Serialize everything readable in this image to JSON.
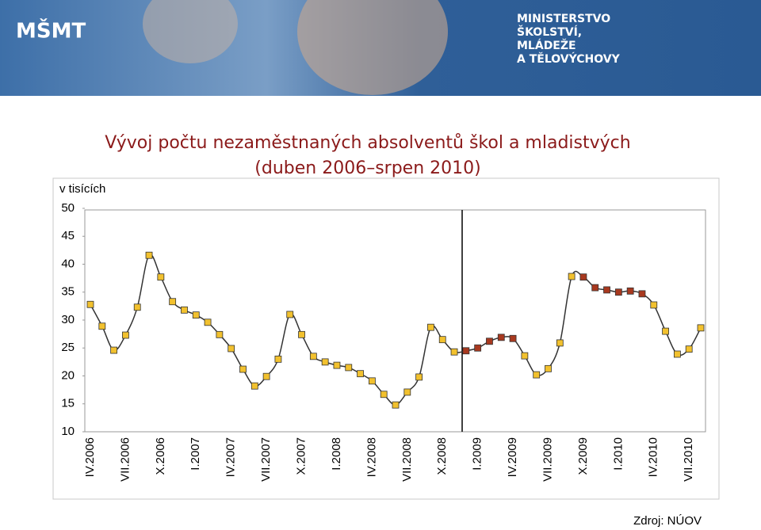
{
  "header": {
    "logo": "MŠMT",
    "ministry": [
      "MINISTERSTVO",
      "ŠKOLSTVÍ,",
      "MLÁDEŽE",
      "A TĚLOVÝCHOVY"
    ]
  },
  "chart_data": {
    "type": "line",
    "title": [
      "Vývoj počtu nezaměstnaných absolventů škol a mladistvých",
      "(duben 2006–srpen 2010)"
    ],
    "y_label": "v tisících",
    "source": "Zdroj: NÚOV",
    "categories": [
      "IV.2006",
      null,
      null,
      "VII.2006",
      null,
      null,
      "X.2006",
      null,
      null,
      "I.2007",
      null,
      null,
      "IV.2007",
      null,
      null,
      "VII.2007",
      null,
      null,
      "X.2007",
      null,
      null,
      "I.2008",
      null,
      null,
      "IV.2008",
      null,
      null,
      "VII.2008",
      null,
      null,
      "X.2008",
      null,
      null,
      "I.2009",
      null,
      null,
      "IV.2009",
      null,
      null,
      "VII.2009",
      null,
      null,
      "X.2009",
      null,
      null,
      "I.2010",
      null,
      null,
      "IV.2010",
      null,
      null,
      "VII.2010",
      null
    ],
    "series": [
      {
        "color": "#333333",
        "values": [
          32.8,
          28.9,
          24.6,
          27.3,
          32.3,
          41.6,
          37.7,
          33.3,
          31.8,
          30.9,
          29.6,
          27.4,
          24.9,
          21.2,
          18.2,
          19.9,
          23.0,
          31.0,
          27.4,
          23.5,
          22.5,
          21.9,
          21.5,
          20.4,
          19.1,
          16.7,
          14.8,
          17.1,
          19.8,
          28.7,
          26.5,
          24.3,
          24.5,
          25.0,
          26.2,
          26.9,
          26.7,
          23.6,
          20.2,
          21.3,
          25.9,
          37.8,
          37.7,
          35.8,
          35.4,
          35.0,
          35.2,
          34.7,
          32.7,
          28.0,
          23.9,
          24.8,
          28.6
        ],
        "marker_colors": [
          "#f2c12e",
          "#f2c12e",
          "#f2c12e",
          "#f2c12e",
          "#f2c12e",
          "#f2c12e",
          "#f2c12e",
          "#f2c12e",
          "#f2c12e",
          "#f2c12e",
          "#f2c12e",
          "#f2c12e",
          "#f2c12e",
          "#f2c12e",
          "#f2c12e",
          "#f2c12e",
          "#f2c12e",
          "#f2c12e",
          "#f2c12e",
          "#f2c12e",
          "#f2c12e",
          "#f2c12e",
          "#f2c12e",
          "#f2c12e",
          "#f2c12e",
          "#f2c12e",
          "#f2c12e",
          "#f2c12e",
          "#f2c12e",
          "#f2c12e",
          "#f2c12e",
          "#f2c12e",
          "#a8391f",
          "#a8391f",
          "#a8391f",
          "#a8391f",
          "#a8391f",
          "#f2c12e",
          "#f2c12e",
          "#f2c12e",
          "#f2c12e",
          "#f2c12e",
          "#a8391f",
          "#a8391f",
          "#a8391f",
          "#a8391f",
          "#a8391f",
          "#a8391f",
          "#f2c12e",
          "#f2c12e",
          "#f2c12e",
          "#f2c12e",
          "#f2c12e"
        ]
      }
    ],
    "ylim": [
      10,
      50
    ],
    "yticks": [
      10,
      15,
      20,
      25,
      30,
      35,
      40,
      45,
      50
    ],
    "grid": false
  }
}
